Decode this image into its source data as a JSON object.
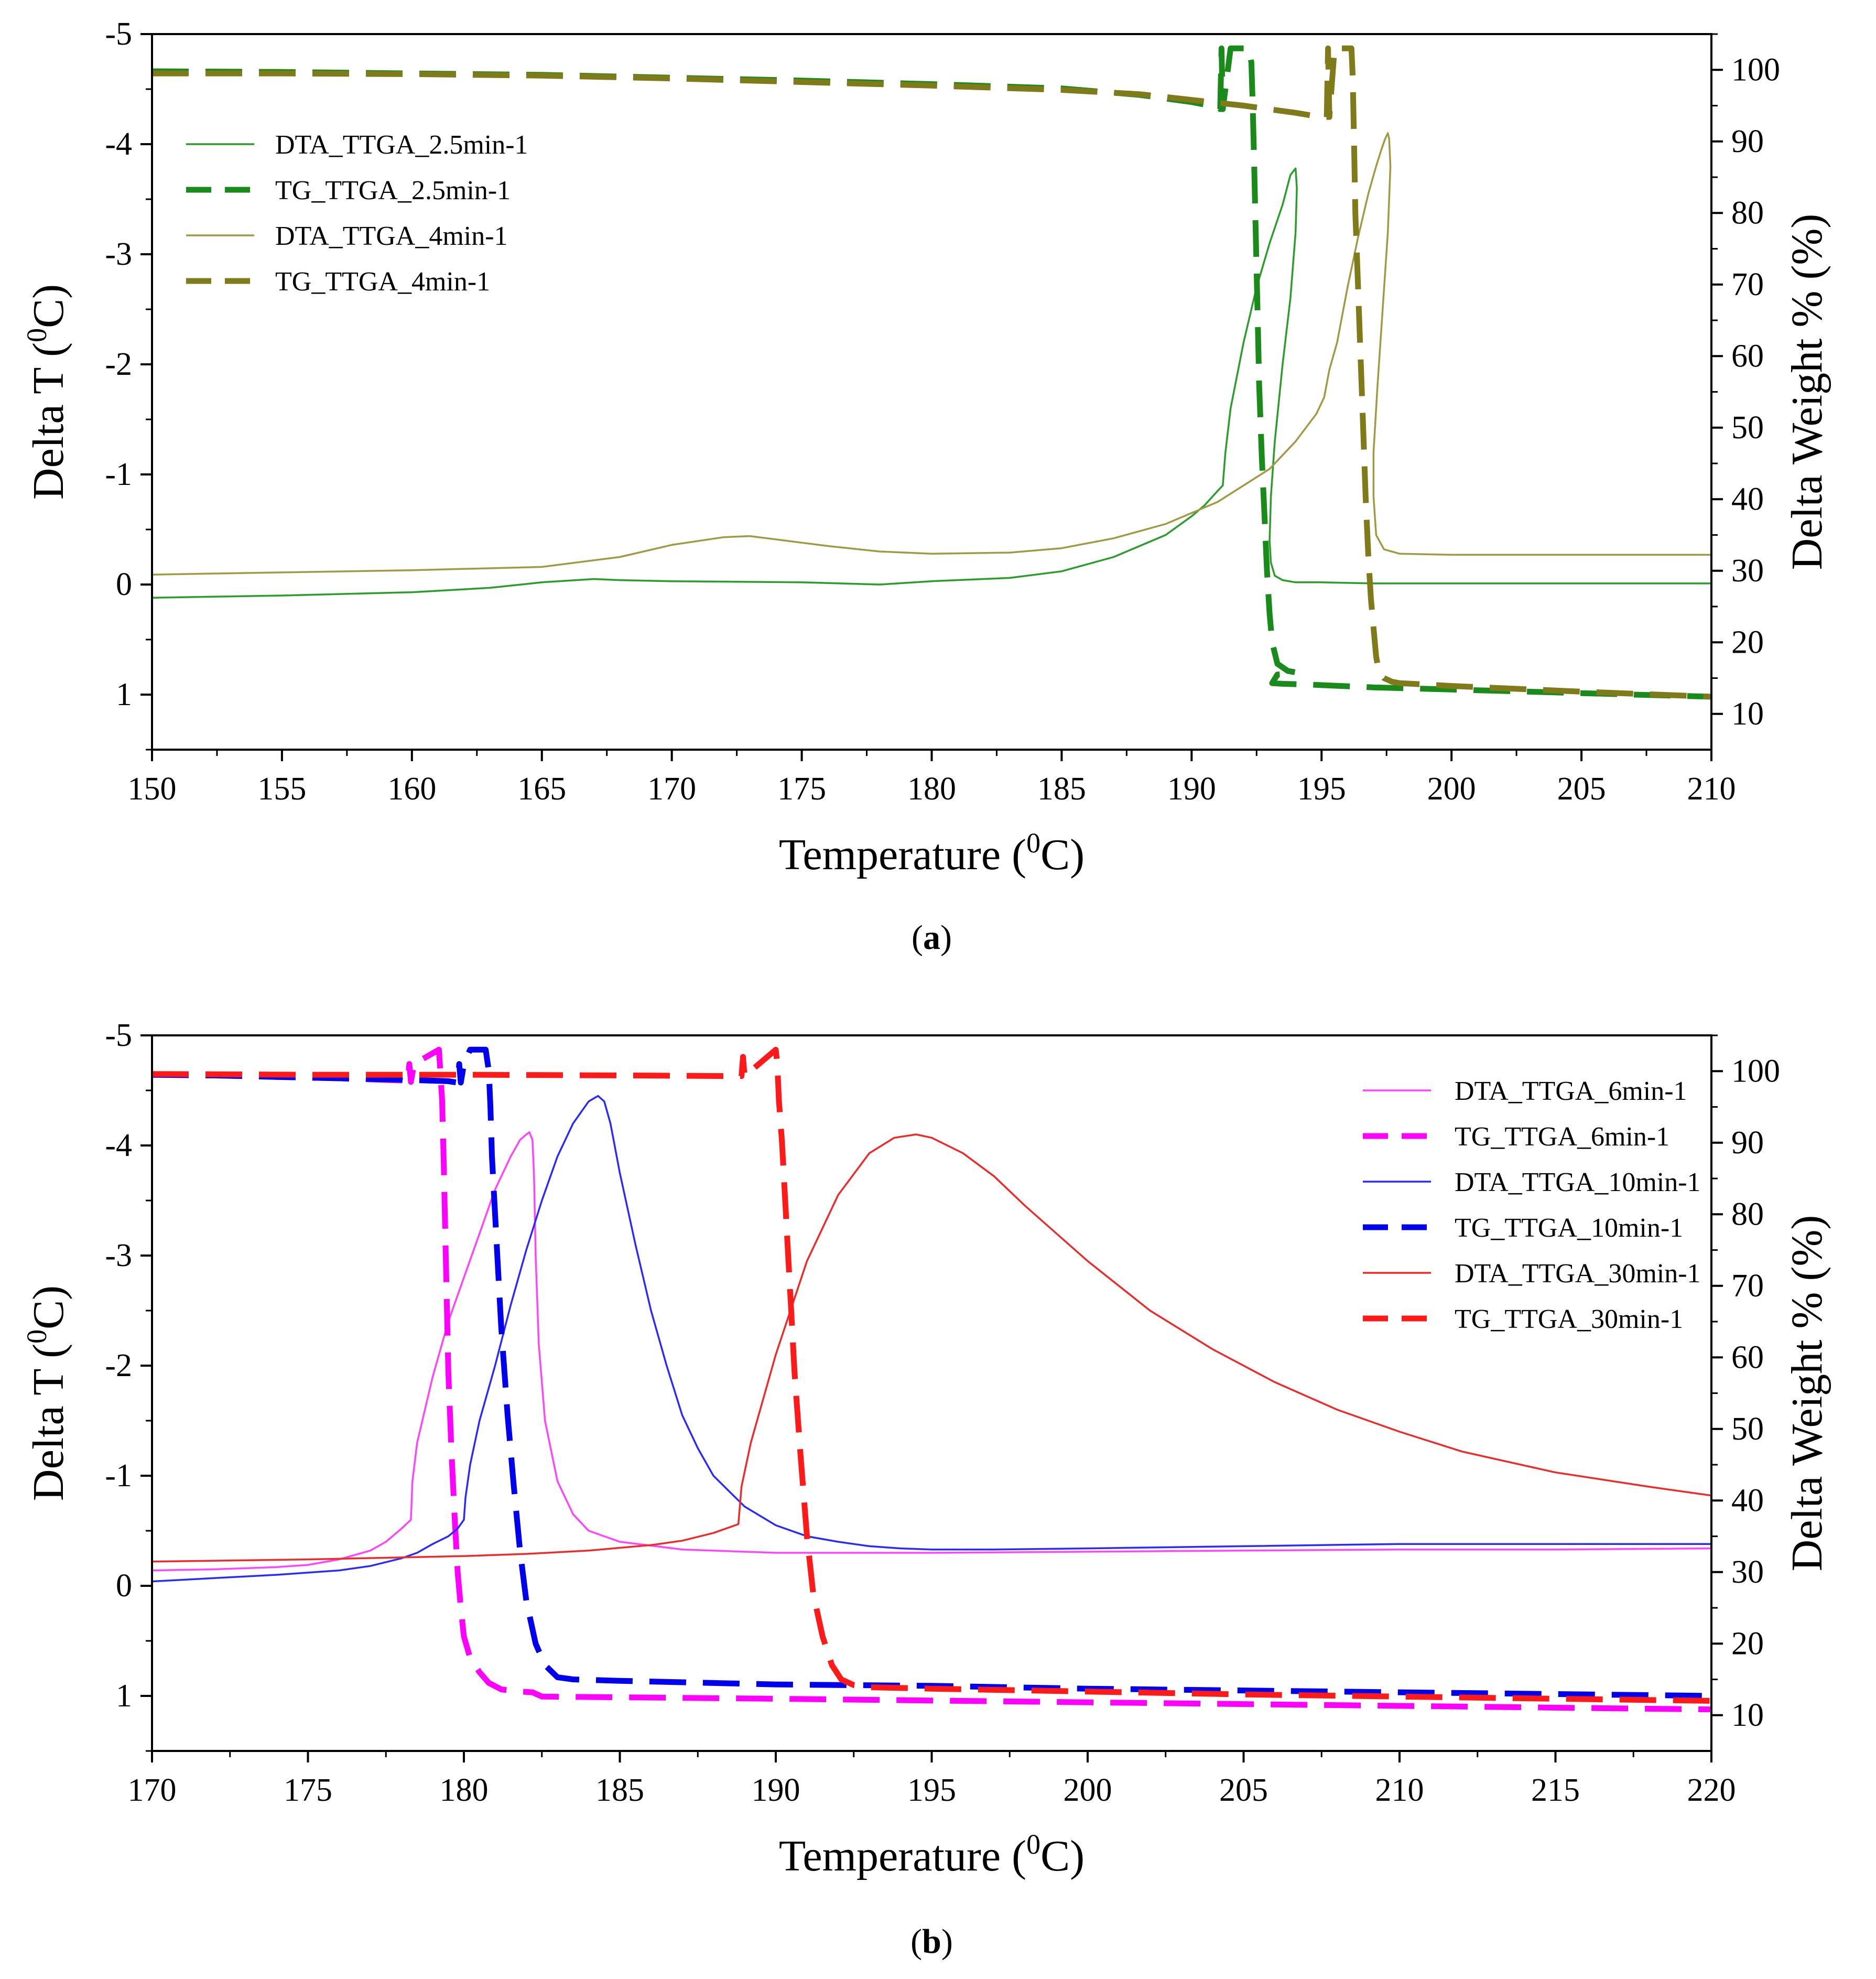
{
  "chart_data": [
    {
      "id": "a",
      "type": "line",
      "caption": "(a)",
      "xlabel": "Temperature (0C)",
      "ylabel": "Delta T (0C)",
      "y2label": "Delta Weight % (%)",
      "xlim": [
        150,
        210
      ],
      "ylim": [
        1.5,
        -5
      ],
      "y2lim": [
        5,
        105
      ],
      "x_ticks": [
        "150",
        "155",
        "160",
        "165",
        "170",
        "175",
        "180",
        "185",
        "190",
        "195",
        "200",
        "205",
        "210"
      ],
      "y_ticks": [
        "-5",
        "-4",
        "-3",
        "-2",
        "-1",
        "0",
        "1"
      ],
      "y2_ticks": [
        "100",
        "90",
        "80",
        "70",
        "60",
        "50",
        "40",
        "30",
        "20",
        "10"
      ],
      "grid": false,
      "legend_position": "top-left",
      "series": [
        {
          "name": "DTA_TTGA_2.5min-1",
          "axis": "left",
          "style": "solid",
          "color": "#2a9d2a",
          "x": [
            150,
            155,
            160,
            163,
            165,
            167,
            168,
            170,
            175,
            178,
            180,
            183,
            185,
            187,
            189,
            190,
            190.5,
            191,
            191.2,
            191.3,
            191.5,
            192,
            192.5,
            193,
            193.5,
            193.8,
            194,
            194.05,
            194,
            193.8,
            193.5,
            193.2,
            193.05,
            193,
            193.05,
            193.2,
            193.5,
            194,
            195,
            197,
            200,
            205,
            210
          ],
          "y": [
            0.12,
            0.1,
            0.07,
            0.03,
            -0.02,
            -0.05,
            -0.04,
            -0.03,
            -0.02,
            0,
            -0.03,
            -0.06,
            -0.12,
            -0.25,
            -0.45,
            -0.62,
            -0.72,
            -0.85,
            -0.9,
            -1.2,
            -1.6,
            -2.2,
            -2.7,
            -3.1,
            -3.45,
            -3.72,
            -3.78,
            -3.6,
            -3.2,
            -2.6,
            -2.0,
            -1.3,
            -0.8,
            -0.4,
            -0.2,
            -0.08,
            -0.04,
            -0.02,
            -0.02,
            -0.01,
            -0.01,
            -0.01,
            -0.01
          ]
        },
        {
          "name": "TG_TTGA_2.5min-1",
          "axis": "right",
          "style": "dashed",
          "color": "#1a8a1a",
          "x": [
            150,
            155,
            160,
            165,
            170,
            175,
            180,
            185,
            188,
            190,
            191,
            191.1,
            191.15,
            191.2,
            191.5,
            192,
            192.2,
            192.3,
            192.35,
            192.4,
            192.45,
            192.5,
            192.55,
            192.6,
            192.7,
            192.8,
            192.9,
            193,
            193.1,
            193.3,
            193.7,
            194,
            193.7,
            193.3,
            193.1,
            193.5,
            194.5,
            197,
            200,
            205,
            210
          ],
          "y": [
            99.8,
            99.7,
            99.5,
            99.3,
            98.9,
            98.5,
            98.0,
            97.4,
            96.5,
            95.5,
            94.8,
            94.5,
            103,
            94.5,
            103,
            103,
            103,
            101,
            95,
            88,
            80,
            72,
            64,
            56,
            46,
            38,
            30,
            24,
            20,
            17,
            16,
            15.8,
            15.6,
            15.5,
            14.3,
            14.2,
            14.1,
            13.7,
            13.4,
            12.9,
            12.4
          ]
        },
        {
          "name": "DTA_TTGA_4min-1",
          "axis": "left",
          "style": "solid",
          "color": "#a19a45",
          "x": [
            150,
            155,
            160,
            165,
            168,
            170,
            172,
            173,
            174,
            176,
            178,
            180,
            183,
            185,
            187,
            189,
            191,
            192,
            193,
            194,
            194.8,
            195.1,
            195.3,
            195.6,
            196,
            196.4,
            196.8,
            197.1,
            197.3,
            197.45,
            197.55,
            197.6,
            197.65,
            197.55,
            197.35,
            197.15,
            197,
            197,
            197.1,
            197.4,
            198,
            200,
            205,
            210
          ],
          "y": [
            -0.09,
            -0.11,
            -0.13,
            -0.16,
            -0.25,
            -0.36,
            -0.43,
            -0.44,
            -0.41,
            -0.35,
            -0.3,
            -0.28,
            -0.29,
            -0.33,
            -0.42,
            -0.55,
            -0.75,
            -0.9,
            -1.05,
            -1.3,
            -1.55,
            -1.7,
            -1.95,
            -2.2,
            -2.7,
            -3.15,
            -3.55,
            -3.8,
            -3.95,
            -4.05,
            -4.1,
            -4.05,
            -3.8,
            -3.2,
            -2.5,
            -1.8,
            -1.2,
            -0.8,
            -0.45,
            -0.32,
            -0.28,
            -0.27,
            -0.27,
            -0.27
          ]
        },
        {
          "name": "TG_TTGA_4min-1",
          "axis": "right",
          "style": "dashed",
          "color": "#7f7a1a",
          "x": [
            150,
            155,
            160,
            165,
            170,
            175,
            180,
            185,
            188,
            190,
            192,
            194,
            195,
            195.2,
            195.25,
            195.3,
            195.5,
            196,
            196.15,
            196.2,
            196.25,
            196.3,
            196.4,
            196.5,
            196.6,
            196.7,
            196.8,
            196.9,
            197,
            197.1,
            197.2,
            197.4,
            197.7,
            198,
            200,
            205,
            210
          ],
          "y": [
            99.5,
            99.5,
            99.4,
            99.2,
            98.8,
            98.3,
            97.8,
            97.2,
            96.6,
            95.8,
            95.0,
            94.0,
            93.4,
            93.4,
            103,
            93.4,
            103,
            103,
            103,
            99,
            90,
            80,
            70,
            60,
            50,
            40,
            32,
            26,
            22,
            18,
            16,
            15,
            14.5,
            14.3,
            13.9,
            13.1,
            12.4
          ]
        }
      ]
    },
    {
      "id": "b",
      "type": "line",
      "caption": "(b)",
      "xlabel": "Temperature (0C)",
      "ylabel": "Delta T (0C)",
      "y2label": "Delta Weight % (%)",
      "xlim": [
        170,
        220
      ],
      "ylim": [
        1.5,
        -5
      ],
      "y2lim": [
        5,
        105
      ],
      "x_ticks": [
        "170",
        "175",
        "180",
        "185",
        "190",
        "195",
        "200",
        "205",
        "210",
        "215",
        "220"
      ],
      "y_ticks": [
        "-5",
        "-4",
        "-3",
        "-2",
        "-1",
        "0",
        "1"
      ],
      "y2_ticks": [
        "100",
        "90",
        "80",
        "70",
        "60",
        "50",
        "40",
        "30",
        "20",
        "10"
      ],
      "grid": false,
      "legend_position": "top-right",
      "series": [
        {
          "name": "DTA_TTGA_6min-1",
          "axis": "left",
          "style": "solid",
          "color": "#ff44ff",
          "x": [
            170,
            172,
            174,
            175,
            176,
            177,
            177.5,
            178,
            178.3,
            178.35,
            178.5,
            179,
            179.5,
            180,
            180.5,
            181,
            181.5,
            181.8,
            182,
            182.1,
            182.2,
            182.25,
            182.3,
            182.4,
            182.6,
            183,
            183.5,
            184,
            185,
            187,
            190,
            195,
            200,
            205,
            210,
            215,
            220
          ],
          "y": [
            -0.14,
            -0.15,
            -0.17,
            -0.19,
            -0.24,
            -0.32,
            -0.4,
            -0.52,
            -0.6,
            -0.95,
            -1.3,
            -1.9,
            -2.4,
            -2.8,
            -3.2,
            -3.6,
            -3.9,
            -4.05,
            -4.1,
            -4.12,
            -4.05,
            -3.7,
            -3.0,
            -2.2,
            -1.5,
            -0.95,
            -0.65,
            -0.5,
            -0.4,
            -0.33,
            -0.3,
            -0.3,
            -0.31,
            -0.32,
            -0.33,
            -0.33,
            -0.34
          ]
        },
        {
          "name": "TG_TTGA_6min-1",
          "axis": "right",
          "style": "dashed",
          "color": "#ff00ff",
          "x": [
            170,
            172,
            174,
            176,
            178,
            178.2,
            178.25,
            178.3,
            178.4,
            179.2,
            179.3,
            179.35,
            179.4,
            179.45,
            179.5,
            179.6,
            179.7,
            179.8,
            179.9,
            180,
            180.2,
            180.5,
            180.8,
            181.2,
            181.8,
            182.2,
            182.5,
            185,
            190,
            200,
            210,
            220
          ],
          "y": [
            99.5,
            99.4,
            99.2,
            99,
            98.7,
            98.5,
            101,
            98.5,
            101,
            103,
            96,
            88,
            78,
            68,
            58,
            47,
            38,
            30,
            25,
            21,
            18,
            16,
            14.5,
            13.6,
            13.3,
            13.2,
            12.6,
            12.5,
            12.3,
            11.8,
            11.3,
            10.8
          ]
        },
        {
          "name": "DTA_TTGA_10min-1",
          "axis": "left",
          "style": "solid",
          "color": "#2a2aff",
          "x": [
            170,
            172,
            174,
            176,
            177,
            178,
            178.5,
            179,
            179.5,
            179.8,
            180,
            180.05,
            180.2,
            180.5,
            181,
            181.5,
            182,
            182.5,
            183,
            183.5,
            184,
            184.3,
            184.5,
            184.7,
            185,
            185.5,
            186,
            186.5,
            187,
            187.5,
            188,
            189,
            190,
            191,
            192,
            193,
            194,
            195,
            197,
            200,
            205,
            210,
            215,
            220
          ],
          "y": [
            -0.04,
            -0.07,
            -0.1,
            -0.14,
            -0.18,
            -0.25,
            -0.3,
            -0.38,
            -0.45,
            -0.52,
            -0.6,
            -0.8,
            -1.1,
            -1.5,
            -2.0,
            -2.55,
            -3.05,
            -3.5,
            -3.9,
            -4.2,
            -4.4,
            -4.45,
            -4.4,
            -4.2,
            -3.75,
            -3.1,
            -2.5,
            -2.0,
            -1.55,
            -1.25,
            -1.0,
            -0.72,
            -0.55,
            -0.45,
            -0.4,
            -0.36,
            -0.34,
            -0.33,
            -0.33,
            -0.34,
            -0.36,
            -0.38,
            -0.38,
            -0.38
          ]
        },
        {
          "name": "TG_TTGA_10min-1",
          "axis": "right",
          "style": "dashed",
          "color": "#0000ee",
          "x": [
            170,
            172,
            174,
            176,
            178,
            179.5,
            179.8,
            179.85,
            179.9,
            180,
            180.2,
            180.7,
            180.8,
            180.85,
            180.9,
            181,
            181.1,
            181.2,
            181.4,
            181.6,
            181.8,
            182,
            182.3,
            182.6,
            183,
            183.5,
            185,
            190,
            195,
            200,
            210,
            220
          ],
          "y": [
            99.5,
            99.4,
            99.2,
            99,
            98.8,
            98.6,
            98.4,
            101,
            98.4,
            101,
            103,
            103,
            100,
            95,
            88,
            80,
            72,
            64,
            52,
            42,
            33,
            26,
            20,
            17,
            15.3,
            15,
            14.8,
            14.3,
            14.1,
            13.7,
            13.2,
            12.7
          ]
        },
        {
          "name": "DTA_TTGA_30min-1",
          "axis": "left",
          "style": "solid",
          "color": "#ee2a2a",
          "x": [
            170,
            175,
            180,
            182,
            184,
            186,
            187,
            188,
            188.8,
            188.9,
            189.2,
            190,
            191,
            192,
            193,
            193.8,
            194.5,
            195,
            196,
            197,
            198,
            199,
            200,
            202,
            204,
            206,
            208,
            210,
            212,
            215,
            218,
            220
          ],
          "y": [
            -0.22,
            -0.24,
            -0.27,
            -0.29,
            -0.32,
            -0.37,
            -0.41,
            -0.48,
            -0.56,
            -0.9,
            -1.3,
            -2.1,
            -2.95,
            -3.55,
            -3.93,
            -4.07,
            -4.1,
            -4.07,
            -3.93,
            -3.72,
            -3.45,
            -3.2,
            -2.95,
            -2.5,
            -2.15,
            -1.85,
            -1.6,
            -1.4,
            -1.22,
            -1.03,
            -0.9,
            -0.82
          ]
        },
        {
          "name": "TG_TTGA_30min-1",
          "axis": "right",
          "style": "dashed",
          "color": "#ff1a1a",
          "x": [
            170,
            175,
            180,
            185,
            188.9,
            188.95,
            189,
            190,
            190.05,
            190.1,
            190.2,
            190.3,
            190.4,
            190.5,
            190.6,
            190.8,
            191,
            191.2,
            191.5,
            191.8,
            192.1,
            192.5,
            193,
            195,
            200,
            205,
            210,
            215,
            220
          ],
          "y": [
            99.6,
            99.5,
            99.5,
            99.4,
            99.3,
            102,
            99.3,
            103,
            101,
            96,
            90,
            82,
            74,
            66,
            58,
            46,
            35,
            27,
            21,
            17,
            15,
            14.2,
            13.9,
            13.7,
            13.3,
            12.9,
            12.6,
            12.3,
            12
          ]
        }
      ]
    }
  ]
}
